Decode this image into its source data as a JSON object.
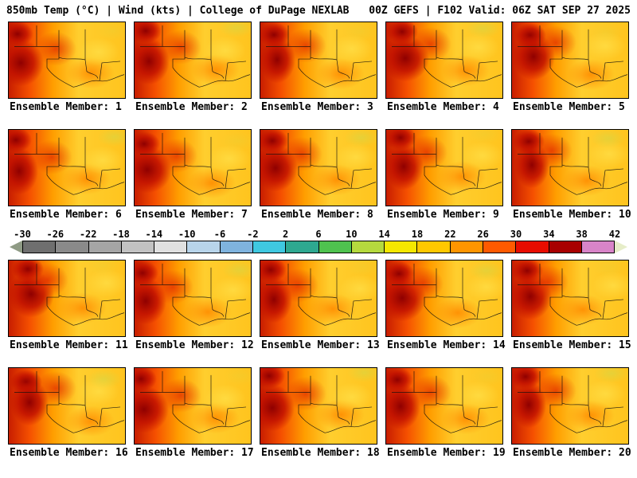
{
  "header": {
    "left": "850mb Temp (°C) | Wind (kts) | College of DuPage NEXLAB",
    "right": "00Z GEFS | F102 Valid: 06Z SAT SEP 27 2025"
  },
  "panels": {
    "labels": [
      "Ensemble Member: 1",
      "Ensemble Member: 2",
      "Ensemble Member: 3",
      "Ensemble Member: 4",
      "Ensemble Member: 5",
      "Ensemble Member: 6",
      "Ensemble Member: 7",
      "Ensemble Member: 8",
      "Ensemble Member: 9",
      "Ensemble Member: 10",
      "Ensemble Member: 11",
      "Ensemble Member: 12",
      "Ensemble Member: 13",
      "Ensemble Member: 14",
      "Ensemble Member: 15",
      "Ensemble Member: 16",
      "Ensemble Member: 17",
      "Ensemble Member: 18",
      "Ensemble Member: 19",
      "Ensemble Member: 20"
    ]
  },
  "colorbar": {
    "unit": "°C",
    "ticks": [
      "-30",
      "-26",
      "-22",
      "-18",
      "-14",
      "-10",
      "-6",
      "-2",
      "2",
      "6",
      "10",
      "14",
      "18",
      "22",
      "26",
      "30",
      "34",
      "38",
      "42"
    ],
    "segment_colors": [
      "#6f6f6f",
      "#8a8a8a",
      "#a5a5a5",
      "#c2c2c2",
      "#e0e0e0",
      "#b8d4ea",
      "#7fb3de",
      "#3fc8e0",
      "#2ea890",
      "#4fc24f",
      "#b5d93e",
      "#f5e800",
      "#ffc800",
      "#ff9500",
      "#ff5a00",
      "#e80c00",
      "#a80000",
      "#d884c8"
    ],
    "arrow_left_color": "#8f9b85",
    "arrow_right_color": "#e6edc8"
  },
  "chart_data": {
    "type": "heatmap",
    "title": "850mb Temp (°C) | Wind (kts)",
    "source": "College of DuPage NEXLAB",
    "model": "GEFS",
    "run": "00Z",
    "forecast_hour": "F102",
    "valid_time": "06Z SAT SEP 27 2025",
    "layout": "4x5 grid of ensemble member map thumbnails with shared horizontal colorbar between rows 2 and 3",
    "members": [
      1,
      2,
      3,
      4,
      5,
      6,
      7,
      8,
      9,
      10,
      11,
      12,
      13,
      14,
      15,
      16,
      17,
      18,
      19,
      20
    ],
    "colorbar_ticks": [
      -30,
      -26,
      -22,
      -18,
      -14,
      -10,
      -6,
      -2,
      2,
      6,
      10,
      14,
      18,
      22,
      26,
      30,
      34,
      38,
      42
    ],
    "colorbar_range": [
      -30,
      42
    ],
    "colorbar_unit": "°C",
    "region_hint": "South-central United States (Texas / Gulf of Mexico region); fields dominated by 10–30 °C warm colors, hottest (dark red) over the west of each panel"
  }
}
